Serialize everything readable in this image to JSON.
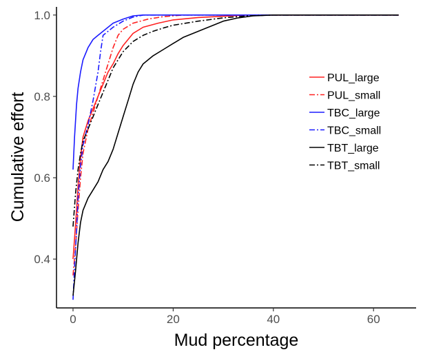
{
  "chart_data": {
    "type": "line",
    "title": "",
    "xlabel": "Mud percentage",
    "ylabel": "Cumulative effort",
    "xlim": [
      -3.3,
      68.5
    ],
    "ylim": [
      0.28,
      1.02
    ],
    "x_ticks": [
      0,
      20,
      40,
      60
    ],
    "y_ticks": [
      0.4,
      0.6,
      0.8,
      1.0
    ],
    "x_tick_labels": [
      "0",
      "20",
      "40",
      "60"
    ],
    "y_tick_labels": [
      "0.4",
      "0.6",
      "0.8",
      "1.0"
    ],
    "grid": false,
    "legend_position": "right",
    "series": [
      {
        "name": "PUL_large",
        "color": "#ff2020",
        "dash": "solid",
        "points": [
          [
            0,
            0.4
          ],
          [
            0.3,
            0.45
          ],
          [
            0.7,
            0.52
          ],
          [
            1,
            0.58
          ],
          [
            1.5,
            0.65
          ],
          [
            2,
            0.7
          ],
          [
            3,
            0.74
          ],
          [
            4,
            0.77
          ],
          [
            5,
            0.8
          ],
          [
            6,
            0.83
          ],
          [
            7,
            0.86
          ],
          [
            8,
            0.88
          ],
          [
            9,
            0.905
          ],
          [
            10,
            0.925
          ],
          [
            12,
            0.955
          ],
          [
            14,
            0.97
          ],
          [
            17,
            0.98
          ],
          [
            20,
            0.988
          ],
          [
            25,
            0.994
          ],
          [
            30,
            0.997
          ],
          [
            35,
            1.0
          ],
          [
            65,
            1.0
          ]
        ]
      },
      {
        "name": "PUL_small",
        "color": "#ff2020",
        "dash": "dashdot",
        "points": [
          [
            0,
            0.36
          ],
          [
            0.5,
            0.43
          ],
          [
            1,
            0.52
          ],
          [
            1.5,
            0.6
          ],
          [
            2,
            0.66
          ],
          [
            3,
            0.72
          ],
          [
            4,
            0.76
          ],
          [
            5,
            0.8
          ],
          [
            6,
            0.84
          ],
          [
            7,
            0.88
          ],
          [
            8,
            0.92
          ],
          [
            9,
            0.95
          ],
          [
            10,
            0.965
          ],
          [
            12,
            0.98
          ],
          [
            15,
            0.99
          ],
          [
            18,
            0.996
          ],
          [
            22,
            1.0
          ],
          [
            65,
            1.0
          ]
        ]
      },
      {
        "name": "TBC_large",
        "color": "#1a1aff",
        "dash": "solid",
        "points": [
          [
            0,
            0.62
          ],
          [
            0.3,
            0.7
          ],
          [
            0.7,
            0.78
          ],
          [
            1,
            0.82
          ],
          [
            1.5,
            0.86
          ],
          [
            2,
            0.89
          ],
          [
            3,
            0.92
          ],
          [
            4,
            0.94
          ],
          [
            5,
            0.95
          ],
          [
            6,
            0.96
          ],
          [
            7,
            0.97
          ],
          [
            8,
            0.98
          ],
          [
            10,
            0.99
          ],
          [
            12,
            0.998
          ],
          [
            14,
            1.0
          ],
          [
            65,
            1.0
          ]
        ]
      },
      {
        "name": "TBC_small",
        "color": "#1a1aff",
        "dash": "dashdot",
        "points": [
          [
            0,
            0.3
          ],
          [
            0.3,
            0.38
          ],
          [
            0.7,
            0.47
          ],
          [
            1,
            0.55
          ],
          [
            1.5,
            0.63
          ],
          [
            2,
            0.68
          ],
          [
            3,
            0.73
          ],
          [
            4,
            0.79
          ],
          [
            5,
            0.86
          ],
          [
            5.5,
            0.91
          ],
          [
            6,
            0.95
          ],
          [
            8,
            0.97
          ],
          [
            10,
            0.985
          ],
          [
            12,
            0.995
          ],
          [
            14,
            1.0
          ],
          [
            65,
            1.0
          ]
        ]
      },
      {
        "name": "TBT_large",
        "color": "#000000",
        "dash": "solid",
        "points": [
          [
            0,
            0.31
          ],
          [
            0.5,
            0.37
          ],
          [
            1,
            0.44
          ],
          [
            1.5,
            0.49
          ],
          [
            2,
            0.52
          ],
          [
            3,
            0.55
          ],
          [
            4,
            0.57
          ],
          [
            5,
            0.59
          ],
          [
            6,
            0.62
          ],
          [
            7,
            0.64
          ],
          [
            8,
            0.67
          ],
          [
            9,
            0.71
          ],
          [
            10,
            0.75
          ],
          [
            11,
            0.79
          ],
          [
            12,
            0.83
          ],
          [
            13,
            0.86
          ],
          [
            14,
            0.88
          ],
          [
            16,
            0.9
          ],
          [
            18,
            0.915
          ],
          [
            20,
            0.93
          ],
          [
            22,
            0.945
          ],
          [
            24,
            0.955
          ],
          [
            26,
            0.965
          ],
          [
            28,
            0.975
          ],
          [
            30,
            0.985
          ],
          [
            33,
            0.993
          ],
          [
            36,
            0.998
          ],
          [
            40,
            1.0
          ],
          [
            65,
            1.0
          ]
        ]
      },
      {
        "name": "TBT_small",
        "color": "#000000",
        "dash": "dashdot",
        "points": [
          [
            0,
            0.48
          ],
          [
            0.5,
            0.56
          ],
          [
            1,
            0.62
          ],
          [
            1.5,
            0.66
          ],
          [
            2,
            0.69
          ],
          [
            3,
            0.72
          ],
          [
            4,
            0.75
          ],
          [
            5,
            0.78
          ],
          [
            6,
            0.81
          ],
          [
            7,
            0.84
          ],
          [
            8,
            0.87
          ],
          [
            9,
            0.89
          ],
          [
            10,
            0.91
          ],
          [
            12,
            0.935
          ],
          [
            14,
            0.95
          ],
          [
            16,
            0.96
          ],
          [
            18,
            0.968
          ],
          [
            20,
            0.975
          ],
          [
            25,
            0.985
          ],
          [
            30,
            0.993
          ],
          [
            35,
            0.998
          ],
          [
            40,
            1.0
          ],
          [
            65,
            1.0
          ]
        ]
      }
    ]
  }
}
